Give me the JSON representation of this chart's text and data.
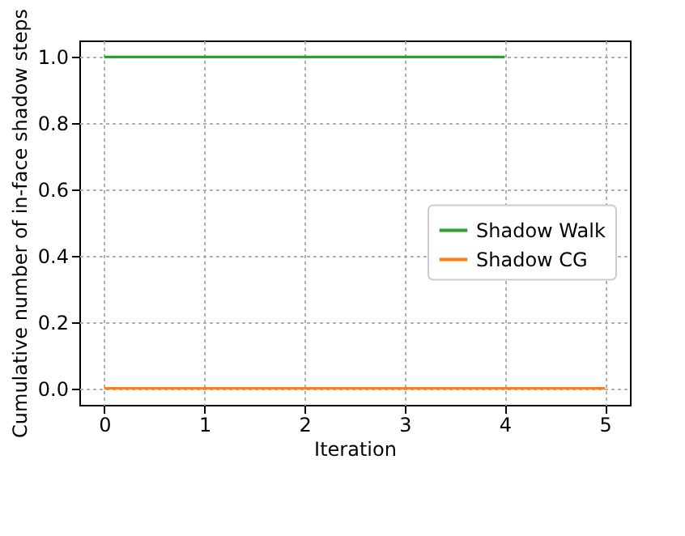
{
  "chart_data": {
    "type": "line",
    "xlabel": "Iteration",
    "ylabel": "Cumulative number of in-face shadow steps",
    "series": [
      {
        "name": "Shadow Walk",
        "color": "#2ca02c",
        "x": [
          0,
          1,
          2,
          3,
          4
        ],
        "values": [
          1,
          1,
          1,
          1,
          1
        ]
      },
      {
        "name": "Shadow CG",
        "color": "#ff7f0e",
        "x": [
          0,
          1,
          2,
          3,
          4,
          5
        ],
        "values": [
          0,
          0,
          0,
          0,
          0,
          0
        ]
      }
    ],
    "xlim": [
      -0.25,
      5.25
    ],
    "xticks": [
      0,
      1,
      2,
      3,
      4,
      5
    ],
    "ylim": [
      -0.05,
      1.05
    ],
    "yticks": [
      {
        "value": 0,
        "label": "0.0"
      },
      0.2,
      0.4,
      0.6,
      0.8,
      {
        "value": 1,
        "label": "1.0"
      }
    ],
    "grid": true,
    "legend": "right",
    "marker": "none",
    "line_style": "solid"
  }
}
